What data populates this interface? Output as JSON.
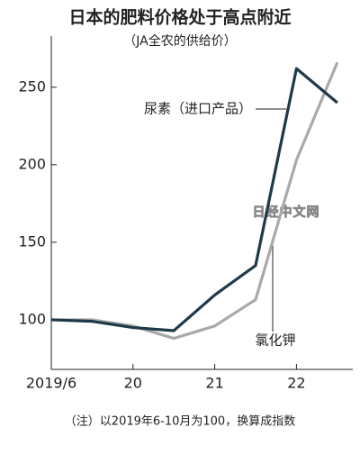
{
  "chart_data": {
    "type": "line",
    "title": "日本的肥料价格处于高点附近",
    "subtitle": "（JA全农的供给价）",
    "categories": [
      "2019/6",
      null,
      "20",
      null,
      "21",
      null,
      "22",
      null
    ],
    "series": [
      {
        "name": "尿素（进口产品）",
        "color": "#1e3a48",
        "values": [
          100,
          99,
          95,
          93,
          116,
          135,
          262,
          240
        ]
      },
      {
        "name": "氯化钾",
        "color": "#a9a9a9",
        "values": [
          100,
          100,
          96,
          88,
          96,
          113,
          203,
          266
        ]
      }
    ],
    "ylim": [
      68,
      283
    ],
    "yticks": [
      100,
      150,
      200,
      250
    ],
    "grid": false,
    "note": "（注）以2019年6-10月为100，换算成指数",
    "watermark": "日经中文网"
  }
}
